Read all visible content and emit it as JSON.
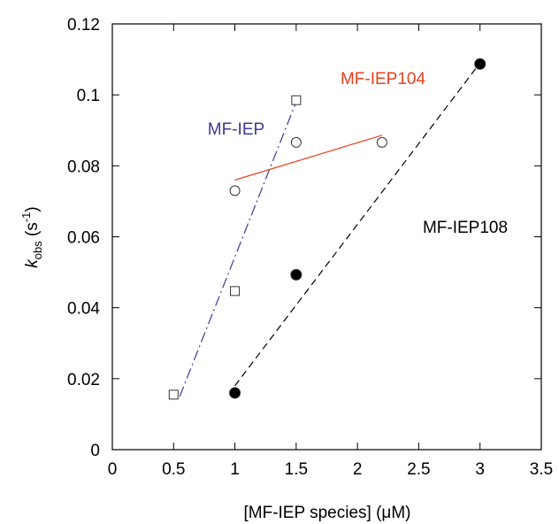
{
  "chart_data": {
    "type": "scatter",
    "x_label": "[MF-IEP species] (μM)",
    "y_label_parts": [
      "k",
      "obs",
      " (s",
      "-1",
      ")"
    ],
    "xlim": [
      0,
      3.5
    ],
    "xticks": [
      0,
      0.5,
      1,
      1.5,
      2,
      2.5,
      3,
      3.5
    ],
    "ylim": [
      0,
      0.12
    ],
    "yticks": [
      0,
      0.02,
      0.04,
      0.06,
      0.08,
      0.1,
      0.12
    ],
    "series": [
      {
        "name": "MF-IEP",
        "color": "#3d3a96",
        "marker": "square",
        "line_style": "dashdot",
        "x": [
          0.5,
          1,
          1.5
        ],
        "values": [
          0.0155,
          0.0447,
          0.0985
        ],
        "fit_x": [
          0.55,
          1.5
        ],
        "fit_y": [
          0.015,
          0.098
        ]
      },
      {
        "name": "MF-IEP104",
        "color": "#e8401c",
        "marker": "circle",
        "line_style": "solid",
        "x": [
          1,
          1.5,
          2.2
        ],
        "values": [
          0.073,
          0.0866,
          0.0866
        ],
        "fit_x": [
          1,
          2.2
        ],
        "fit_y": [
          0.076,
          0.0886
        ]
      },
      {
        "name": "MF-IEP108",
        "color": "#000000",
        "marker": "filled-circle",
        "line_style": "dashed",
        "x": [
          1,
          1.5,
          3
        ],
        "values": [
          0.016,
          0.0493,
          0.1087
        ],
        "fit_x": [
          1,
          3
        ],
        "fit_y": [
          0.018,
          0.109
        ]
      }
    ]
  }
}
